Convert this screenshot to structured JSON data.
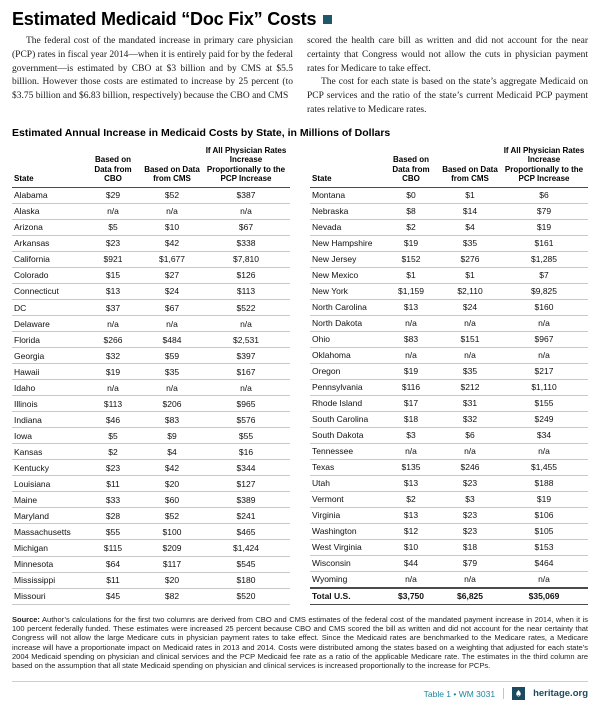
{
  "colors": {
    "accent-teal": "#1b87a0",
    "brand-navy": "#1c4b60",
    "title-square": "#20586a",
    "rule-gray": "#c9c9c9"
  },
  "page": {
    "title": "Estimated Medicaid “Doc Fix” Costs",
    "intro": {
      "col1_p1": "The federal cost of the mandated increase in primary care physician (PCP) rates in fiscal year 2014—when it is entirely paid for by the federal government—is estimated by CBO at $3 billion and by CMS at $5.5 billion. However those costs are estimated to increase by 25 percent (to $3.75 billion and $6.83 billion, respectively) because the CBO and CMS",
      "col2_p1": "scored the health care bill as written and did not account for the near certainty that Congress would not allow the cuts in physician payment rates for Medicare to take effect.",
      "col2_p2": "The cost for each state is based on the state’s aggregate Medicaid on PCP services and the ratio of the state’s current Medicaid PCP payment rates relative to Medicare rates."
    },
    "table_title": "Estimated Annual Increase in Medicaid Costs by State, in Millions of Dollars"
  },
  "table": {
    "headers": [
      "State",
      "Based on Data from CBO",
      "Based on Data from CMS",
      "If All Physician Rates Increase Proportionally to the PCP Increase"
    ],
    "left_rows": [
      [
        "Alabama",
        "$29",
        "$52",
        "$387"
      ],
      [
        "Alaska",
        "n/a",
        "n/a",
        "n/a"
      ],
      [
        "Arizona",
        "$5",
        "$10",
        "$67"
      ],
      [
        "Arkansas",
        "$23",
        "$42",
        "$338"
      ],
      [
        "California",
        "$921",
        "$1,677",
        "$7,810"
      ],
      [
        "Colorado",
        "$15",
        "$27",
        "$126"
      ],
      [
        "Connecticut",
        "$13",
        "$24",
        "$113"
      ],
      [
        "DC",
        "$37",
        "$67",
        "$522"
      ],
      [
        "Delaware",
        "n/a",
        "n/a",
        "n/a"
      ],
      [
        "Florida",
        "$266",
        "$484",
        "$2,531"
      ],
      [
        "Georgia",
        "$32",
        "$59",
        "$397"
      ],
      [
        "Hawaii",
        "$19",
        "$35",
        "$167"
      ],
      [
        "Idaho",
        "n/a",
        "n/a",
        "n/a"
      ],
      [
        "Illinois",
        "$113",
        "$206",
        "$965"
      ],
      [
        "Indiana",
        "$46",
        "$83",
        "$576"
      ],
      [
        "Iowa",
        "$5",
        "$9",
        "$55"
      ],
      [
        "Kansas",
        "$2",
        "$4",
        "$16"
      ],
      [
        "Kentucky",
        "$23",
        "$42",
        "$344"
      ],
      [
        "Louisiana",
        "$11",
        "$20",
        "$127"
      ],
      [
        "Maine",
        "$33",
        "$60",
        "$389"
      ],
      [
        "Maryland",
        "$28",
        "$52",
        "$241"
      ],
      [
        "Massachusetts",
        "$55",
        "$100",
        "$465"
      ],
      [
        "Michigan",
        "$115",
        "$209",
        "$1,424"
      ],
      [
        "Minnesota",
        "$64",
        "$117",
        "$545"
      ],
      [
        "Mississippi",
        "$11",
        "$20",
        "$180"
      ],
      [
        "Missouri",
        "$45",
        "$82",
        "$520"
      ]
    ],
    "right_rows": [
      [
        "Montana",
        "$0",
        "$1",
        "$6"
      ],
      [
        "Nebraska",
        "$8",
        "$14",
        "$79"
      ],
      [
        "Nevada",
        "$2",
        "$4",
        "$19"
      ],
      [
        "New Hampshire",
        "$19",
        "$35",
        "$161"
      ],
      [
        "New Jersey",
        "$152",
        "$276",
        "$1,285"
      ],
      [
        "New Mexico",
        "$1",
        "$1",
        "$7"
      ],
      [
        "New York",
        "$1,159",
        "$2,110",
        "$9,825"
      ],
      [
        "North Carolina",
        "$13",
        "$24",
        "$160"
      ],
      [
        "North Dakota",
        "n/a",
        "n/a",
        "n/a"
      ],
      [
        "Ohio",
        "$83",
        "$151",
        "$967"
      ],
      [
        "Oklahoma",
        "n/a",
        "n/a",
        "n/a"
      ],
      [
        "Oregon",
        "$19",
        "$35",
        "$217"
      ],
      [
        "Pennsylvania",
        "$116",
        "$212",
        "$1,110"
      ],
      [
        "Rhode Island",
        "$17",
        "$31",
        "$155"
      ],
      [
        "South Carolina",
        "$18",
        "$32",
        "$249"
      ],
      [
        "South Dakota",
        "$3",
        "$6",
        "$34"
      ],
      [
        "Tennessee",
        "n/a",
        "n/a",
        "n/a"
      ],
      [
        "Texas",
        "$135",
        "$246",
        "$1,455"
      ],
      [
        "Utah",
        "$13",
        "$23",
        "$188"
      ],
      [
        "Vermont",
        "$2",
        "$3",
        "$19"
      ],
      [
        "Virginia",
        "$13",
        "$23",
        "$106"
      ],
      [
        "Washington",
        "$12",
        "$23",
        "$105"
      ],
      [
        "West Virginia",
        "$10",
        "$18",
        "$153"
      ],
      [
        "Wisconsin",
        "$44",
        "$79",
        "$464"
      ],
      [
        "Wyoming",
        "n/a",
        "n/a",
        "n/a"
      ]
    ],
    "total": [
      "Total U.S.",
      "$3,750",
      "$6,825",
      "$35,069"
    ]
  },
  "source": {
    "label": "Source:",
    "text": "Author’s calculations for the first two columns are derived from CBO and CMS estimates of the federal cost of the mandated payment increase in 2014, when it is 100 percent federally funded. These estimates were increased 25 percent because CBO and CMS scored the bill as written and did not account for the near certainty that Congress will not allow the large Medicare cuts in physician payment rates to take effect. Since the Medicaid rates are benchmarked to the Medicare rates, a Medicare increase will have a proportionate impact on Medicaid rates in 2013 and 2014. Costs were distributed among the states based on a weighting that adjusted for each state’s 2004 Medicaid spending on physician and clinical services and the PCP Medicaid fee rate as a ratio of the applicable Medicare rate. The estimates in the third column are based on the assumption that all state Medicaid spending on physician and clinical services is increased proportionally to the increase for PCPs."
  },
  "footer": {
    "table_label": "Table 1 • WM 3031",
    "site": "heritage.org"
  }
}
